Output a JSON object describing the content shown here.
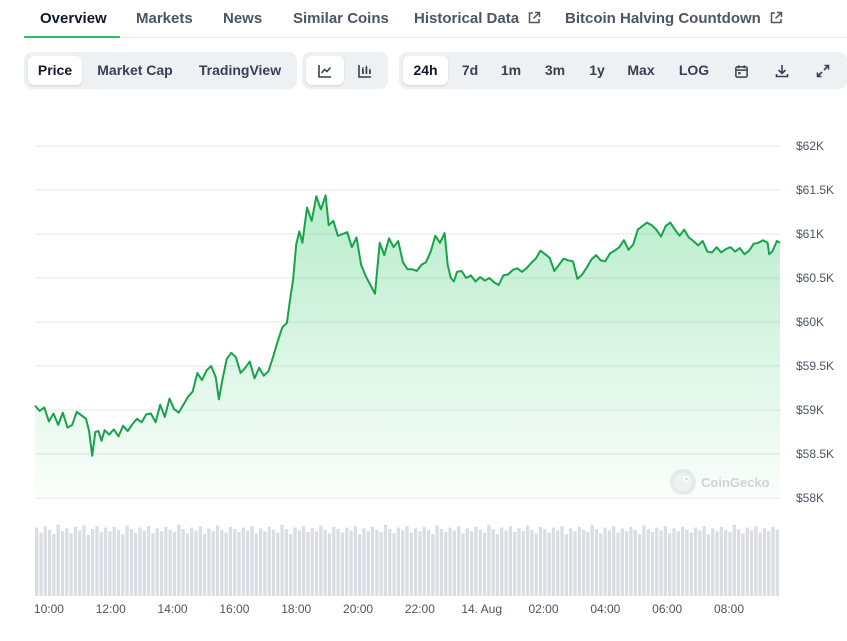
{
  "tabs": [
    {
      "label": "Overview",
      "active": true,
      "external": false
    },
    {
      "label": "Markets",
      "active": false,
      "external": false
    },
    {
      "label": "News",
      "active": false,
      "external": false
    },
    {
      "label": "Similar Coins",
      "active": false,
      "external": false
    },
    {
      "label": "Historical Data",
      "active": false,
      "external": true
    },
    {
      "label": "Bitcoin Halving Countdown",
      "active": false,
      "external": true
    }
  ],
  "toolbar": {
    "metric": [
      "Price",
      "Market Cap",
      "TradingView"
    ],
    "metric_active": "Price",
    "chart_style_icons": [
      "line-chart-icon",
      "candlestick-chart-icon"
    ],
    "range": [
      "24h",
      "7d",
      "1m",
      "3m",
      "1y",
      "Max",
      "LOG"
    ],
    "range_active": "24h",
    "action_icons": [
      "calendar-icon",
      "download-icon",
      "fullscreen-icon"
    ]
  },
  "watermark": "CoinGecko",
  "colors": {
    "line": "#16a34a",
    "fill_top": "#22c55e",
    "volume": "#d1d5db",
    "grid": "#e5e7eb"
  },
  "chart_data": {
    "type": "area",
    "title": "",
    "xlabel": "",
    "ylabel": "",
    "ylim": [
      58000,
      62000
    ],
    "y_ticks": [
      "$58K",
      "$58.5K",
      "$59K",
      "$59.5K",
      "$60K",
      "$60.5K",
      "$61K",
      "$61.5K",
      "$62K"
    ],
    "y_tick_values": [
      58000,
      58500,
      59000,
      59500,
      60000,
      60500,
      61000,
      61500,
      62000
    ],
    "x_ticks": [
      "10:00",
      "12:00",
      "14:00",
      "16:00",
      "18:00",
      "20:00",
      "22:00",
      "14. Aug",
      "02:00",
      "04:00",
      "06:00",
      "08:00"
    ],
    "x_tick_hours": [
      10,
      12,
      14,
      16,
      18,
      20,
      22,
      24,
      26,
      28,
      30,
      32
    ],
    "x_range_hours": [
      9.55,
      33.65
    ],
    "grid": true,
    "series": [
      {
        "values": [
          [
            9.55,
            59050
          ],
          [
            9.7,
            58990
          ],
          [
            9.85,
            59030
          ],
          [
            10.0,
            58870
          ],
          [
            10.15,
            58960
          ],
          [
            10.3,
            58830
          ],
          [
            10.45,
            58970
          ],
          [
            10.6,
            58800
          ],
          [
            10.75,
            58830
          ],
          [
            10.9,
            58980
          ],
          [
            11.05,
            58940
          ],
          [
            11.2,
            58900
          ],
          [
            11.3,
            58760
          ],
          [
            11.4,
            58480
          ],
          [
            11.5,
            58750
          ],
          [
            11.6,
            58760
          ],
          [
            11.7,
            58650
          ],
          [
            11.8,
            58770
          ],
          [
            11.95,
            58720
          ],
          [
            12.1,
            58780
          ],
          [
            12.25,
            58700
          ],
          [
            12.4,
            58820
          ],
          [
            12.55,
            58760
          ],
          [
            12.7,
            58840
          ],
          [
            12.85,
            58900
          ],
          [
            13.0,
            58860
          ],
          [
            13.15,
            58950
          ],
          [
            13.3,
            58960
          ],
          [
            13.45,
            58860
          ],
          [
            13.6,
            59060
          ],
          [
            13.75,
            58920
          ],
          [
            13.9,
            59130
          ],
          [
            14.05,
            59010
          ],
          [
            14.2,
            58970
          ],
          [
            14.35,
            59060
          ],
          [
            14.5,
            59150
          ],
          [
            14.65,
            59210
          ],
          [
            14.8,
            59420
          ],
          [
            14.95,
            59340
          ],
          [
            15.1,
            59450
          ],
          [
            15.25,
            59500
          ],
          [
            15.4,
            59370
          ],
          [
            15.5,
            59120
          ],
          [
            15.6,
            59320
          ],
          [
            15.75,
            59580
          ],
          [
            15.9,
            59650
          ],
          [
            16.05,
            59600
          ],
          [
            16.2,
            59420
          ],
          [
            16.35,
            59480
          ],
          [
            16.5,
            59550
          ],
          [
            16.65,
            59360
          ],
          [
            16.8,
            59480
          ],
          [
            16.95,
            59390
          ],
          [
            17.1,
            59440
          ],
          [
            17.25,
            59600
          ],
          [
            17.4,
            59780
          ],
          [
            17.55,
            59940
          ],
          [
            17.7,
            59990
          ],
          [
            17.8,
            60250
          ],
          [
            17.9,
            60480
          ],
          [
            18.0,
            60880
          ],
          [
            18.1,
            61030
          ],
          [
            18.2,
            60900
          ],
          [
            18.35,
            61300
          ],
          [
            18.5,
            61150
          ],
          [
            18.65,
            61430
          ],
          [
            18.8,
            61280
          ],
          [
            18.95,
            61440
          ],
          [
            19.05,
            61100
          ],
          [
            19.2,
            61150
          ],
          [
            19.35,
            60980
          ],
          [
            19.5,
            61000
          ],
          [
            19.65,
            61020
          ],
          [
            19.8,
            60850
          ],
          [
            19.95,
            60960
          ],
          [
            20.1,
            60650
          ],
          [
            20.25,
            60520
          ],
          [
            20.4,
            60420
          ],
          [
            20.55,
            60320
          ],
          [
            20.7,
            60900
          ],
          [
            20.85,
            60760
          ],
          [
            21.0,
            60950
          ],
          [
            21.15,
            60850
          ],
          [
            21.3,
            60920
          ],
          [
            21.45,
            60680
          ],
          [
            21.6,
            60600
          ],
          [
            21.75,
            60600
          ],
          [
            21.9,
            60580
          ],
          [
            22.05,
            60650
          ],
          [
            22.2,
            60680
          ],
          [
            22.35,
            60800
          ],
          [
            22.5,
            60980
          ],
          [
            22.65,
            60900
          ],
          [
            22.8,
            61010
          ],
          [
            22.9,
            60650
          ],
          [
            23.0,
            60500
          ],
          [
            23.1,
            60460
          ],
          [
            23.2,
            60570
          ],
          [
            23.35,
            60580
          ],
          [
            23.5,
            60500
          ],
          [
            23.65,
            60530
          ],
          [
            23.8,
            60460
          ],
          [
            23.95,
            60510
          ],
          [
            24.1,
            60470
          ],
          [
            24.25,
            60500
          ],
          [
            24.4,
            60450
          ],
          [
            24.55,
            60420
          ],
          [
            24.7,
            60530
          ],
          [
            24.85,
            60540
          ],
          [
            25.0,
            60590
          ],
          [
            25.15,
            60610
          ],
          [
            25.3,
            60570
          ],
          [
            25.45,
            60610
          ],
          [
            25.6,
            60670
          ],
          [
            25.75,
            60720
          ],
          [
            25.9,
            60810
          ],
          [
            26.05,
            60770
          ],
          [
            26.2,
            60730
          ],
          [
            26.35,
            60580
          ],
          [
            26.5,
            60650
          ],
          [
            26.65,
            60720
          ],
          [
            26.8,
            60700
          ],
          [
            26.95,
            60690
          ],
          [
            27.1,
            60490
          ],
          [
            27.25,
            60540
          ],
          [
            27.4,
            60620
          ],
          [
            27.55,
            60710
          ],
          [
            27.7,
            60760
          ],
          [
            27.85,
            60700
          ],
          [
            28.0,
            60690
          ],
          [
            28.15,
            60780
          ],
          [
            28.3,
            60810
          ],
          [
            28.45,
            60850
          ],
          [
            28.6,
            60930
          ],
          [
            28.75,
            60820
          ],
          [
            28.9,
            60880
          ],
          [
            29.05,
            61050
          ],
          [
            29.2,
            61090
          ],
          [
            29.35,
            61130
          ],
          [
            29.5,
            61100
          ],
          [
            29.65,
            61050
          ],
          [
            29.8,
            60970
          ],
          [
            29.95,
            61090
          ],
          [
            30.1,
            61130
          ],
          [
            30.25,
            61050
          ],
          [
            30.4,
            60980
          ],
          [
            30.55,
            61050
          ],
          [
            30.7,
            60960
          ],
          [
            30.85,
            60920
          ],
          [
            31.0,
            60870
          ],
          [
            31.15,
            60920
          ],
          [
            31.3,
            60800
          ],
          [
            31.45,
            60790
          ],
          [
            31.6,
            60850
          ],
          [
            31.75,
            60790
          ],
          [
            31.9,
            60830
          ],
          [
            32.05,
            60850
          ],
          [
            32.2,
            60800
          ],
          [
            32.35,
            60840
          ],
          [
            32.5,
            60770
          ],
          [
            32.65,
            60810
          ],
          [
            32.8,
            60890
          ],
          [
            32.95,
            60900
          ],
          [
            33.1,
            60930
          ],
          [
            33.25,
            60900
          ],
          [
            33.3,
            60770
          ],
          [
            33.4,
            60800
          ],
          [
            33.55,
            60920
          ],
          [
            33.65,
            60900
          ]
        ]
      }
    ],
    "volume": {
      "values": [
        0.95,
        0.88,
        0.97,
        0.92,
        0.86,
        0.99,
        0.9,
        0.94,
        0.87,
        0.96,
        0.91,
        0.98,
        0.85,
        0.93,
        0.97,
        0.89,
        0.95,
        0.9,
        0.96,
        0.92,
        0.86,
        0.98,
        0.93,
        0.88,
        0.95,
        0.91,
        0.97,
        0.87,
        0.94,
        0.9,
        0.96,
        0.92,
        0.89,
        0.99,
        0.93,
        0.87,
        0.95,
        0.91,
        0.97,
        0.86,
        0.94,
        0.9,
        0.98,
        0.92,
        0.88,
        0.96,
        0.93,
        0.89,
        0.95,
        0.91,
        0.97,
        0.87,
        0.94,
        0.9,
        0.96,
        0.92,
        0.88,
        0.99,
        0.93,
        0.86,
        0.95,
        0.91,
        0.97,
        0.89,
        0.94,
        0.9,
        0.98,
        0.92,
        0.87,
        0.96,
        0.93,
        0.88,
        0.95,
        0.91,
        0.97,
        0.86,
        0.94,
        0.9,
        0.96,
        0.92,
        0.89,
        0.99,
        0.93,
        0.87,
        0.95,
        0.91,
        0.97,
        0.88,
        0.94,
        0.9,
        0.96,
        0.92,
        0.86,
        0.98,
        0.93,
        0.89,
        0.95,
        0.91,
        0.97,
        0.87,
        0.94,
        0.9,
        0.96,
        0.92,
        0.88,
        0.99,
        0.93,
        0.86,
        0.95,
        0.91,
        0.97,
        0.89,
        0.94,
        0.9,
        0.98,
        0.92,
        0.87,
        0.96,
        0.93,
        0.88,
        0.95,
        0.91,
        0.97,
        0.86,
        0.94,
        0.9,
        0.96,
        0.92,
        0.89,
        0.99,
        0.93,
        0.87,
        0.95,
        0.91,
        0.97,
        0.88,
        0.94,
        0.9,
        0.96,
        0.92,
        0.86,
        0.98,
        0.93,
        0.89,
        0.95,
        0.91,
        0.97,
        0.87,
        0.94,
        0.9,
        0.96,
        0.92,
        0.88,
        0.95,
        0.91,
        0.97,
        0.86,
        0.94,
        0.9,
        0.96,
        0.92,
        0.89,
        0.99,
        0.93,
        0.87,
        0.95,
        0.91,
        0.97,
        0.88,
        0.94,
        0.9,
        0.96,
        0.92
      ]
    }
  }
}
